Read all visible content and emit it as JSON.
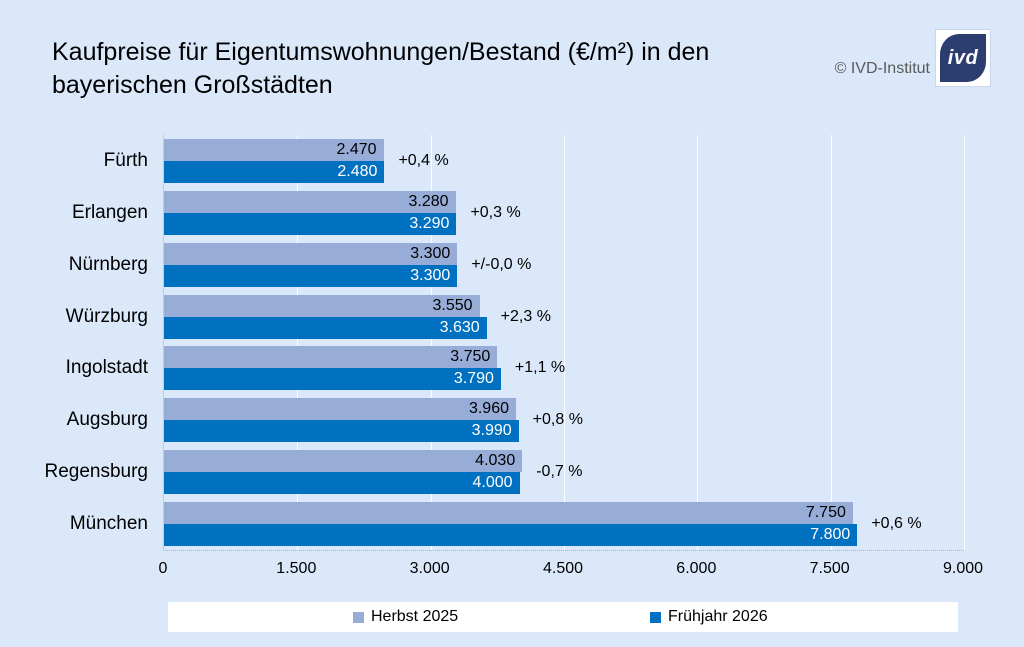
{
  "title": {
    "line1": "Kaufpreise für Eigentumswohnungen/Bestand (€/m²) in den",
    "line2": "bayerischen Großstädten"
  },
  "attribution": {
    "copyright": "© IVD-Institut",
    "logo_text": "ivd",
    "logo_color": "#2c3e6f"
  },
  "colors": {
    "background": "#dbe8fa",
    "series_light": "#97acd7",
    "series_dark": "#0070c0",
    "legend_background": "#ffffff"
  },
  "chart_data": {
    "type": "bar",
    "orientation": "horizontal",
    "title": "Kaufpreise für Eigentumswohnungen/Bestand (€/m²) in den bayerischen Großstädten",
    "categories": [
      "Fürth",
      "Erlangen",
      "Nürnberg",
      "Würzburg",
      "Ingolstadt",
      "Augsburg",
      "Regensburg",
      "München"
    ],
    "series": [
      {
        "name": "Herbst 2025",
        "color": "#97acd7",
        "values": [
          2470,
          3280,
          3300,
          3550,
          3750,
          3960,
          4030,
          7750
        ],
        "labels": [
          "2.470",
          "3.280",
          "3.300",
          "3.550",
          "3.750",
          "3.960",
          "4.030",
          "7.750"
        ]
      },
      {
        "name": "Frühjahr 2026",
        "color": "#0070c0",
        "values": [
          2480,
          3290,
          3300,
          3630,
          3790,
          3990,
          4000,
          7800
        ],
        "labels": [
          "2.480",
          "3.290",
          "3.300",
          "3.630",
          "3.790",
          "3.990",
          "4.000",
          "7.800"
        ]
      }
    ],
    "change_labels": [
      "+0,4 %",
      "+0,3 %",
      "+/-0,0 %",
      "+2,3 %",
      "+1,1 %",
      "+0,8 %",
      "-0,7 %",
      "+0,6 %"
    ],
    "xlim": [
      0,
      9000
    ],
    "x_ticks": [
      "0",
      "1.500",
      "3.000",
      "4.500",
      "6.000",
      "7.500",
      "9.000"
    ],
    "x_tick_values": [
      0,
      1500,
      3000,
      4500,
      6000,
      7500,
      9000
    ],
    "grid": "vertical",
    "legend_position": "bottom"
  }
}
